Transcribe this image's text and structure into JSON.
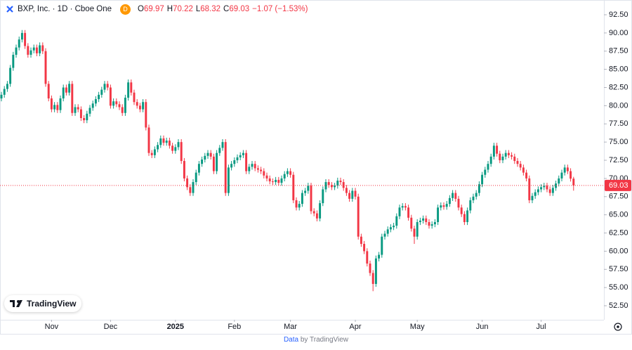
{
  "chart_data": {
    "type": "candlestick",
    "title": "BXP, Inc. · 1D · Cboe One",
    "interval_badge": "D",
    "ohlc_letters": [
      "O",
      "H",
      "L",
      "C"
    ],
    "change_label": "−1.07 (−1.53%)",
    "logo_text": "TradingView",
    "footer": {
      "data": "Data",
      "by": "by TradingView"
    },
    "up_color": "#089981",
    "down_color": "#f23645",
    "grid": false,
    "last_price_line": true,
    "xlim": [
      -0.48,
      204.29
    ],
    "ylim": [
      50.57,
      94.53
    ],
    "xticks": [
      {
        "value": 17,
        "label": "Nov"
      },
      {
        "value": 37,
        "label": "Dec"
      },
      {
        "value": 59,
        "label": "2025"
      },
      {
        "value": 79,
        "label": "Feb"
      },
      {
        "value": 98,
        "label": "Mar"
      },
      {
        "value": 120,
        "label": "Apr"
      },
      {
        "value": 141,
        "label": "May"
      },
      {
        "value": 163,
        "label": "Jun"
      },
      {
        "value": 183,
        "label": "Jul"
      }
    ],
    "yticks": [
      {
        "value": 52.5,
        "label": "52.50"
      },
      {
        "value": 55,
        "label": "55.00"
      },
      {
        "value": 57.5,
        "label": "57.50"
      },
      {
        "value": 60,
        "label": "60.00"
      },
      {
        "value": 62.5,
        "label": "62.50"
      },
      {
        "value": 65,
        "label": "65.00"
      },
      {
        "value": 67.5,
        "label": "67.50"
      },
      {
        "value": 70,
        "label": "70.00"
      },
      {
        "value": 72.5,
        "label": "72.50"
      },
      {
        "value": 75,
        "label": "75.00"
      },
      {
        "value": 77.5,
        "label": "77.50"
      },
      {
        "value": 80,
        "label": "80.00"
      },
      {
        "value": 82.5,
        "label": "82.50"
      },
      {
        "value": 85,
        "label": "85.00"
      },
      {
        "value": 87.5,
        "label": "87.50"
      },
      {
        "value": 90,
        "label": "90.00"
      },
      {
        "value": 92.5,
        "label": "92.50"
      }
    ],
    "open": [
      81.0,
      81.5,
      82.3,
      83.0,
      85.2,
      87.0,
      88.0,
      89.1,
      90.0,
      88.2,
      87.0,
      87.6,
      88.0,
      87.2,
      88.3,
      87.5,
      83.0,
      81.0,
      79.5,
      80.1,
      79.4,
      81.0,
      82.5,
      81.8,
      83.0,
      79.0,
      79.8,
      79.5,
      78.3,
      78.0,
      78.9,
      79.7,
      80.3,
      80.9,
      81.5,
      82.2,
      83.0,
      82.5,
      80.0,
      80.6,
      80.2,
      79.8,
      79.0,
      81.1,
      83.2,
      81.8,
      80.5,
      80.0,
      79.5,
      80.5,
      77.0,
      73.5,
      73.2,
      74.0,
      74.6,
      75.5,
      74.9,
      75.2,
      74.5,
      73.8,
      74.3,
      75.0,
      72.4,
      70.0,
      68.8,
      68.0,
      69.5,
      70.8,
      72.0,
      72.6,
      73.1,
      73.5,
      73.0,
      71.0,
      73.5,
      74.2,
      75.0,
      68.0,
      71.5,
      72.0,
      72.5,
      72.9,
      73.2,
      73.5,
      71.0,
      71.6,
      72.0,
      71.4,
      71.2,
      71.0,
      70.4,
      70.0,
      69.6,
      69.5,
      69.8,
      69.4,
      70.0,
      70.6,
      71.0,
      70.5,
      67.0,
      66.0,
      66.5,
      68.0,
      68.3,
      69.0,
      65.5,
      65.2,
      64.5,
      66.6,
      68.5,
      69.5,
      69.1,
      68.8,
      69.0,
      69.7,
      69.5,
      68.7,
      68.0,
      67.2,
      68.3,
      67.5,
      62.0,
      61.0,
      60.0,
      58.3,
      57.0,
      55.5,
      59.0,
      59.5,
      62.0,
      62.4,
      63.0,
      63.3,
      63.5,
      64.8,
      66.0,
      66.2,
      66.0,
      64.6,
      63.1,
      62.0,
      64.0,
      64.2,
      64.5,
      64.0,
      63.5,
      63.7,
      64.0,
      66.0,
      66.3,
      66.1,
      66.5,
      67.3,
      68.0,
      67.2,
      66.0,
      65.1,
      64.0,
      65.6,
      67.0,
      67.5,
      68.0,
      69.2,
      70.5,
      71.2,
      72.0,
      73.0,
      74.5,
      73.4,
      72.5,
      73.0,
      73.5,
      73.2,
      73.0,
      72.4,
      72.0,
      71.5,
      70.8,
      70.0,
      67.0,
      67.6,
      68.1,
      68.5,
      68.8,
      69.0,
      68.5,
      68.0,
      68.7,
      69.3,
      70.0,
      70.8,
      71.5,
      71.0,
      69.97
    ],
    "high": [
      81.9,
      82.7,
      83.4,
      85.6,
      87.4,
      88.4,
      89.5,
      90.4,
      90.4,
      88.6,
      88.0,
      88.4,
      88.4,
      88.7,
      88.7,
      87.9,
      83.4,
      81.4,
      80.5,
      80.5,
      81.4,
      82.9,
      82.9,
      83.4,
      83.4,
      80.2,
      80.2,
      79.9,
      78.7,
      79.3,
      80.1,
      80.7,
      81.3,
      81.9,
      82.6,
      83.4,
      83.4,
      82.9,
      81.0,
      81.0,
      80.6,
      80.2,
      81.5,
      83.6,
      83.6,
      82.2,
      80.9,
      80.4,
      80.9,
      80.9,
      77.4,
      73.9,
      74.4,
      75.0,
      75.9,
      75.9,
      75.6,
      75.6,
      74.9,
      74.7,
      75.4,
      75.4,
      72.8,
      70.4,
      69.2,
      69.9,
      71.2,
      72.4,
      73.0,
      73.5,
      73.9,
      73.9,
      73.4,
      73.9,
      74.6,
      75.4,
      75.4,
      71.9,
      72.4,
      72.9,
      73.3,
      73.6,
      73.9,
      73.9,
      72.0,
      72.4,
      72.4,
      71.8,
      71.6,
      71.4,
      70.8,
      70.4,
      70.0,
      70.2,
      70.2,
      70.4,
      71.0,
      71.4,
      71.4,
      70.9,
      67.4,
      66.9,
      68.4,
      68.7,
      69.4,
      69.4,
      65.9,
      65.6,
      67.0,
      68.9,
      69.9,
      69.9,
      69.5,
      69.4,
      70.1,
      70.1,
      69.9,
      69.1,
      68.4,
      68.7,
      68.7,
      67.9,
      62.4,
      61.4,
      60.4,
      58.7,
      57.4,
      59.4,
      59.9,
      62.4,
      62.8,
      63.4,
      63.7,
      63.9,
      65.2,
      66.4,
      66.6,
      66.6,
      66.4,
      65.0,
      63.5,
      64.4,
      64.6,
      64.9,
      64.9,
      64.4,
      64.1,
      64.4,
      66.4,
      66.7,
      66.7,
      66.9,
      67.7,
      68.4,
      68.4,
      67.6,
      66.4,
      65.5,
      66.0,
      67.4,
      67.9,
      68.4,
      69.6,
      70.9,
      71.6,
      72.4,
      73.4,
      74.9,
      74.9,
      73.8,
      73.4,
      73.9,
      73.9,
      73.6,
      73.4,
      72.8,
      72.4,
      71.9,
      71.2,
      70.4,
      68.0,
      68.5,
      68.9,
      69.2,
      69.4,
      69.4,
      68.9,
      69.1,
      69.7,
      70.4,
      71.2,
      71.9,
      71.9,
      71.4,
      70.22
    ],
    "low": [
      80.6,
      81.1,
      81.9,
      82.6,
      84.8,
      86.6,
      87.6,
      88.7,
      87.8,
      86.6,
      86.6,
      87.2,
      86.8,
      86.8,
      87.1,
      82.6,
      80.6,
      79.1,
      79.1,
      79.0,
      79.0,
      80.6,
      81.4,
      81.4,
      78.6,
      78.6,
      79.1,
      77.9,
      77.6,
      77.6,
      78.5,
      79.3,
      79.9,
      80.5,
      81.1,
      81.8,
      82.1,
      79.6,
      79.6,
      79.8,
      79.4,
      78.6,
      78.6,
      80.7,
      81.4,
      80.1,
      79.6,
      79.1,
      79.1,
      76.6,
      73.1,
      72.8,
      72.8,
      73.6,
      74.2,
      74.5,
      74.5,
      74.1,
      73.4,
      73.4,
      73.9,
      72.0,
      69.6,
      68.4,
      67.6,
      67.6,
      69.1,
      70.4,
      71.6,
      72.2,
      72.7,
      72.6,
      70.6,
      70.6,
      73.1,
      73.8,
      67.6,
      67.6,
      71.1,
      71.6,
      72.1,
      72.5,
      72.8,
      70.6,
      70.6,
      71.2,
      71.0,
      70.8,
      70.6,
      70.0,
      69.6,
      69.2,
      69.1,
      69.1,
      69.0,
      69.0,
      69.6,
      70.2,
      70.1,
      66.6,
      65.6,
      65.6,
      66.1,
      67.6,
      67.9,
      65.1,
      64.8,
      64.1,
      64.1,
      66.2,
      68.1,
      68.7,
      68.4,
      68.4,
      68.6,
      69.1,
      68.3,
      67.6,
      66.8,
      66.8,
      67.1,
      61.6,
      60.6,
      59.6,
      57.9,
      56.6,
      54.5,
      55.1,
      58.6,
      59.1,
      61.6,
      62.0,
      62.6,
      62.9,
      63.1,
      64.4,
      65.6,
      65.6,
      64.2,
      62.7,
      61.0,
      61.6,
      63.6,
      63.8,
      63.6,
      63.1,
      63.1,
      63.3,
      63.6,
      65.6,
      65.7,
      65.7,
      66.1,
      66.9,
      66.8,
      65.6,
      64.7,
      63.6,
      63.6,
      65.2,
      66.6,
      67.1,
      67.6,
      68.8,
      70.1,
      70.8,
      71.6,
      72.6,
      73.0,
      72.1,
      72.1,
      72.6,
      72.8,
      72.6,
      72.0,
      71.6,
      71.1,
      70.4,
      69.6,
      66.6,
      66.6,
      67.2,
      67.7,
      68.1,
      68.4,
      68.1,
      67.6,
      67.6,
      68.3,
      68.9,
      69.6,
      70.4,
      70.6,
      69.57,
      68.32
    ],
    "close": [
      81.5,
      82.3,
      83.0,
      85.2,
      87.0,
      88.0,
      89.1,
      90.0,
      88.2,
      87.0,
      87.6,
      88.0,
      87.2,
      88.3,
      87.5,
      83.0,
      81.0,
      79.5,
      80.1,
      79.4,
      81.0,
      82.5,
      81.8,
      83.0,
      79.0,
      79.8,
      79.5,
      78.3,
      78.0,
      78.9,
      79.7,
      80.3,
      80.9,
      81.5,
      82.2,
      83.0,
      82.5,
      80.0,
      80.6,
      80.2,
      79.8,
      79.0,
      81.1,
      83.2,
      81.8,
      80.5,
      80.0,
      79.5,
      80.5,
      77.0,
      73.5,
      73.2,
      74.0,
      74.6,
      75.5,
      74.9,
      75.2,
      74.5,
      73.8,
      74.3,
      75.0,
      72.4,
      70.0,
      68.8,
      68.0,
      69.5,
      70.8,
      72.0,
      72.6,
      73.1,
      73.5,
      73.0,
      71.0,
      73.5,
      74.2,
      75.0,
      68.0,
      71.5,
      72.0,
      72.5,
      72.9,
      73.2,
      73.5,
      71.0,
      71.6,
      72.0,
      71.4,
      71.2,
      71.0,
      70.4,
      70.0,
      69.6,
      69.5,
      69.8,
      69.4,
      70.0,
      70.6,
      71.0,
      70.5,
      67.0,
      66.0,
      66.5,
      68.0,
      68.3,
      69.0,
      65.5,
      65.2,
      64.5,
      66.6,
      68.5,
      69.5,
      69.1,
      68.8,
      69.0,
      69.7,
      69.5,
      68.7,
      68.0,
      67.2,
      68.3,
      67.5,
      62.0,
      61.0,
      60.0,
      58.3,
      57.0,
      55.5,
      59.0,
      59.5,
      62.0,
      62.4,
      63.0,
      63.3,
      63.5,
      64.8,
      66.0,
      66.2,
      66.0,
      64.6,
      63.1,
      62.0,
      64.0,
      64.2,
      64.5,
      64.0,
      63.5,
      63.7,
      64.0,
      66.0,
      66.3,
      66.1,
      66.5,
      67.3,
      68.0,
      67.2,
      66.0,
      65.1,
      64.0,
      65.6,
      67.0,
      67.5,
      68.0,
      69.2,
      70.5,
      71.2,
      72.0,
      73.0,
      74.5,
      73.4,
      72.5,
      73.0,
      73.5,
      73.2,
      73.0,
      72.4,
      72.0,
      71.5,
      70.8,
      70.0,
      67.0,
      67.6,
      68.1,
      68.5,
      68.8,
      69.0,
      68.5,
      68.0,
      68.7,
      69.3,
      70.0,
      70.8,
      71.5,
      71.0,
      69.97,
      69.03
    ]
  }
}
